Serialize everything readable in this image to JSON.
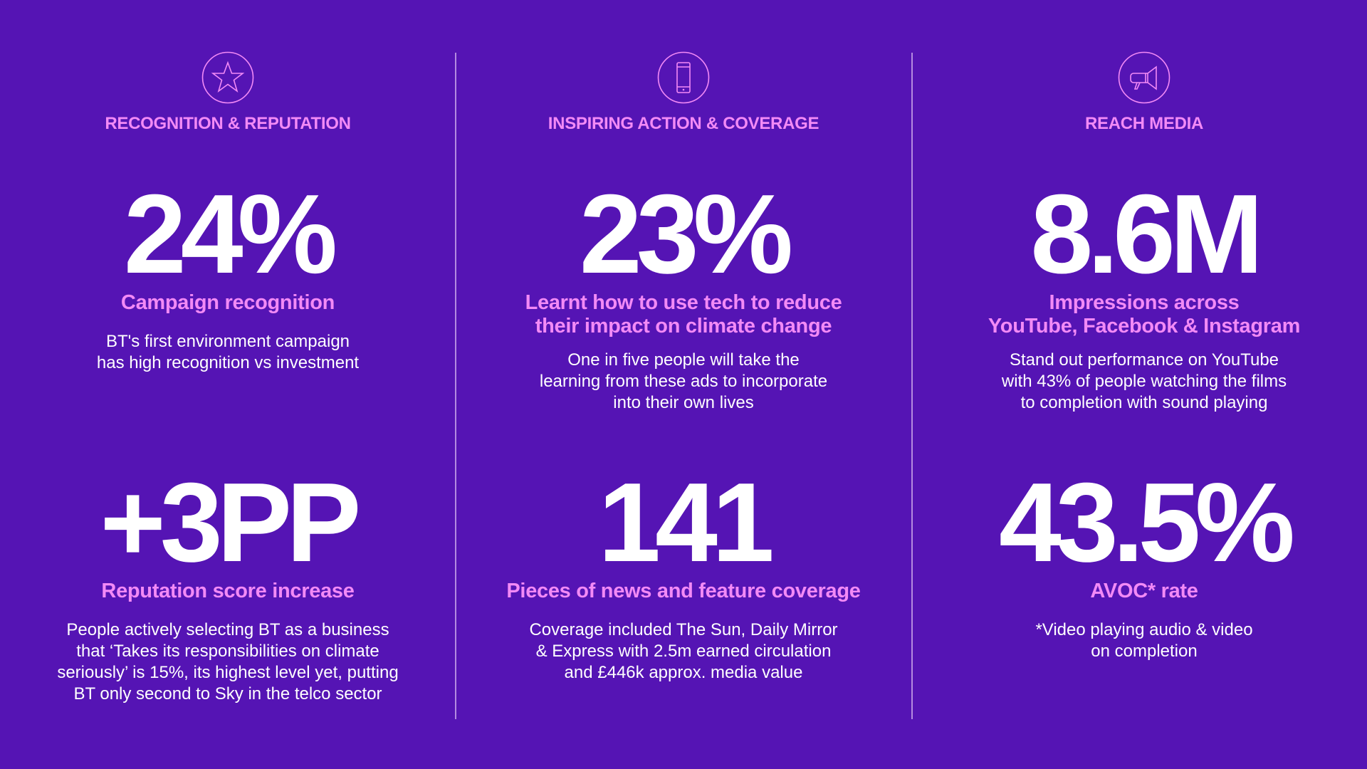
{
  "colors": {
    "background": "#5514b4",
    "accent": "#f38af6",
    "text": "#ffffff"
  },
  "columns": [
    {
      "icon": "star-icon",
      "heading": "RECOGNITION & REPUTATION",
      "stats": [
        {
          "value": "24%",
          "label": "Campaign recognition",
          "body": "BT's first environment campaign\nhas high recognition vs investment"
        },
        {
          "value": "+3PP",
          "label": "Reputation score increase",
          "body": "People actively selecting BT as a business\nthat ‘Takes its responsibilities on climate\nseriously’ is 15%, its highest level yet, putting\nBT only second to Sky in the telco sector"
        }
      ]
    },
    {
      "icon": "mobile-phone-icon",
      "heading": "INSPIRING ACTION & COVERAGE",
      "stats": [
        {
          "value": "23%",
          "label": "Learnt how to use tech to reduce\ntheir impact on climate change",
          "body": "One in five people will take the\nlearning from these ads to incorporate\ninto their own lives"
        },
        {
          "value": "141",
          "label": "Pieces of news and feature coverage",
          "body": "Coverage included The Sun, Daily Mirror\n& Express with 2.5m earned circulation\nand £446k approx. media value"
        }
      ]
    },
    {
      "icon": "megaphone-icon",
      "heading": "REACH MEDIA",
      "stats": [
        {
          "value": "8.6M",
          "label": "Impressions across\nYouTube, Facebook & Instagram",
          "body": "Stand out performance on YouTube\nwith 43% of people watching the films\nto completion with sound playing"
        },
        {
          "value": "43.5%",
          "label": "AVOC* rate",
          "body": "*Video playing audio & video\non completion"
        }
      ]
    }
  ]
}
